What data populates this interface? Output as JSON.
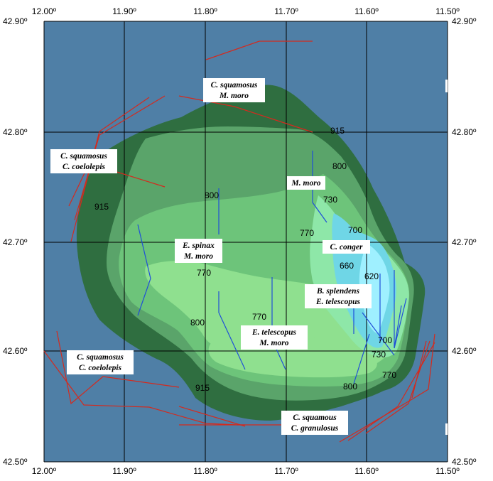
{
  "map": {
    "colors": {
      "sea": "#4f7fa6",
      "deep_shelf": "#2f6e40",
      "shelf_915": "#5aa46a",
      "zone_800": "#6dc47a",
      "zone_770": "#8fe08f",
      "zone_730": "#8ee7a8",
      "zone_700": "#6fd6e6",
      "zone_660": "#9ff0ff",
      "trawl_red": "#d42a1e",
      "trawl_blue": "#1f4fd8",
      "grid": "#000000"
    },
    "x_ticks": [
      "12.00º",
      "11.90º",
      "11.80º",
      "11.70º",
      "11.60º",
      "11.50º"
    ],
    "y_ticks": [
      "42.90º",
      "42.80º",
      "42.70º",
      "42.60º",
      "42.50º"
    ],
    "depth_labels": [
      "915",
      "800",
      "730",
      "700",
      "770",
      "660",
      "620",
      "800",
      "770",
      "800",
      "770",
      "700",
      "730",
      "770",
      "800",
      "915",
      "915"
    ],
    "species_labels": [
      [
        "C. squamosus",
        "M. moro"
      ],
      [
        "C. squamosus",
        "C. coelolepis"
      ],
      [
        "M. moro"
      ],
      [
        "C. conger"
      ],
      [
        "E. spinax",
        "M. moro"
      ],
      [
        "B. splendens",
        "E. telescopus"
      ],
      [
        "E. telescopus",
        "M. moro"
      ],
      [
        "C. squamosus",
        "C. coelolepis"
      ],
      [
        "C. squamous",
        "C. granulosus"
      ]
    ]
  }
}
